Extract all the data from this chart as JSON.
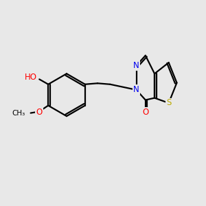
{
  "bg_color": "#e8e8e8",
  "bond_color": "#000000",
  "bond_width": 1.6,
  "atom_colors": {
    "N": "#0000ee",
    "O": "#ff0000",
    "S": "#bbaa00",
    "C": "#000000"
  },
  "font_size": 8.5,
  "font_size_small": 7.5
}
